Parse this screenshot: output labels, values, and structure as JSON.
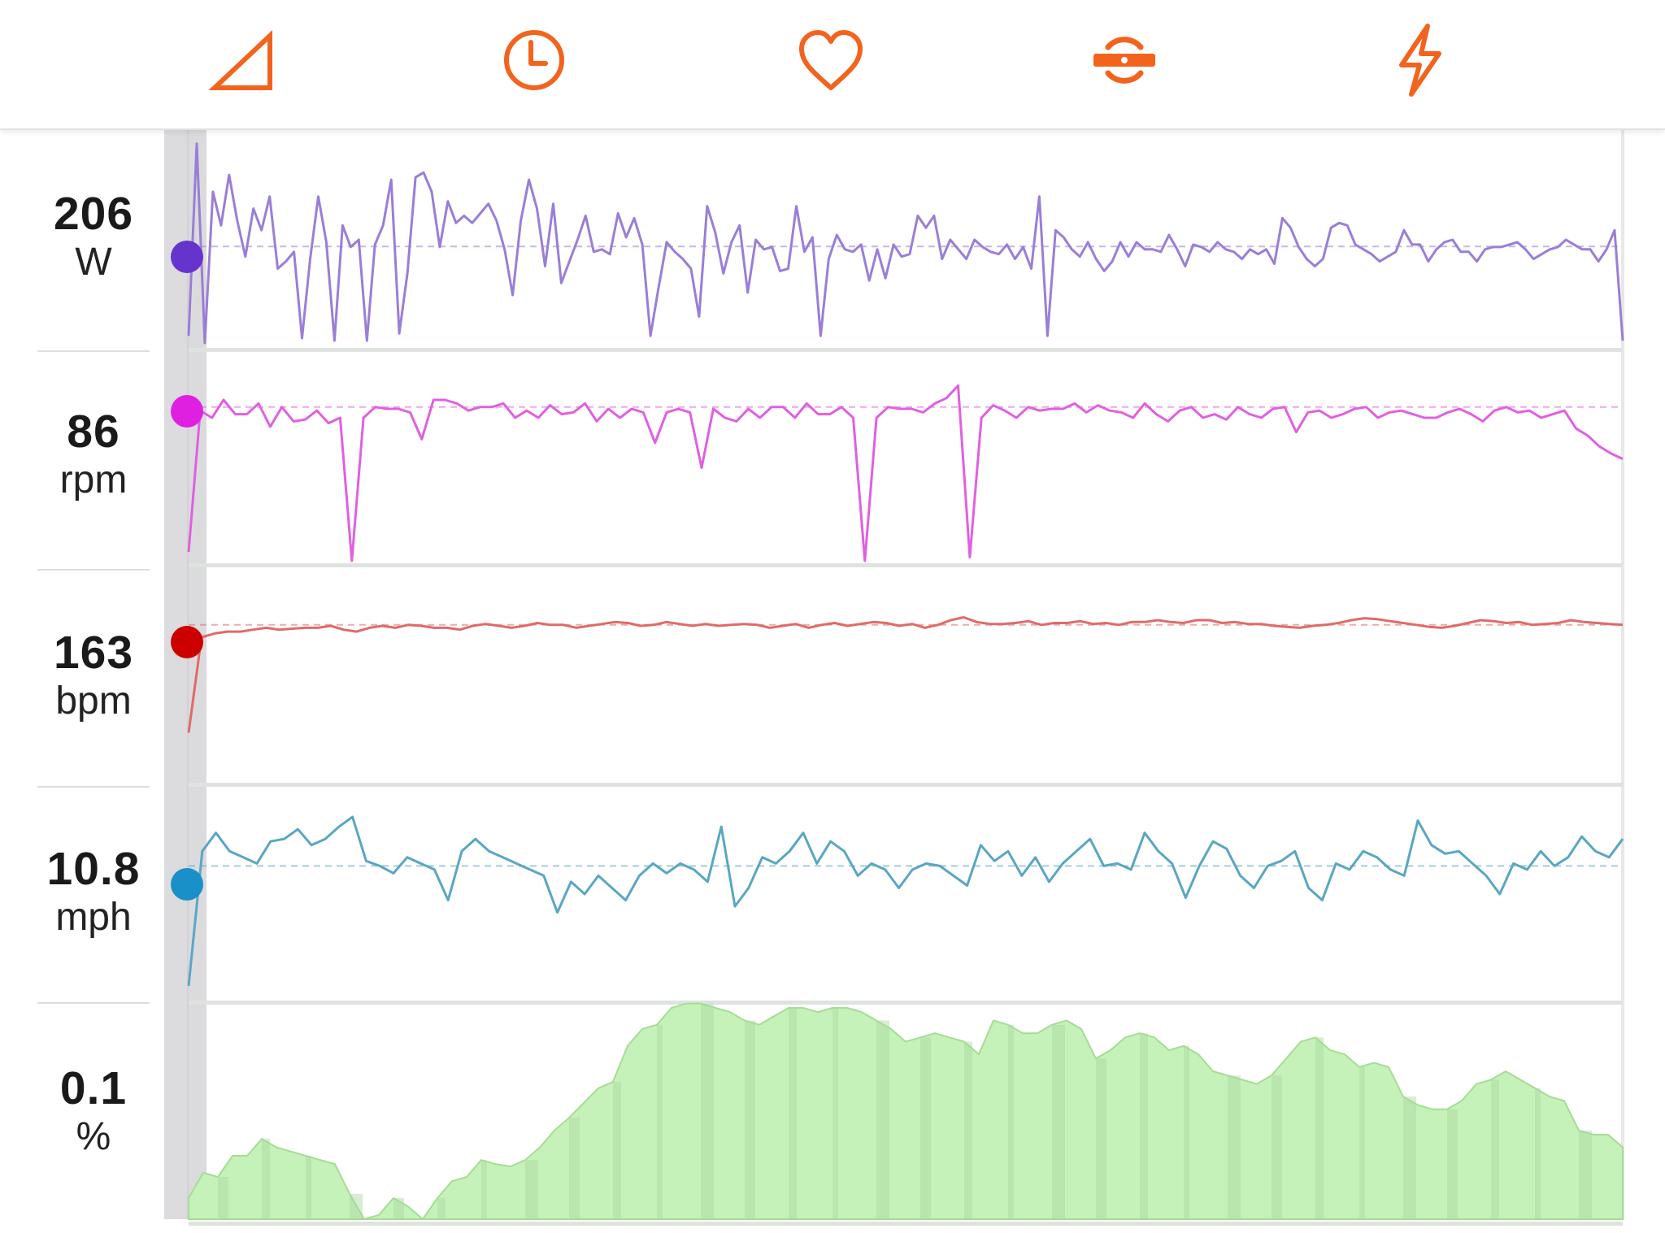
{
  "toolbar": {
    "icons": [
      "elevation-icon",
      "clock-icon",
      "heart-icon",
      "cadence-icon",
      "power-icon"
    ],
    "accent": "#f2641e"
  },
  "metrics": [
    {
      "value": "206",
      "unit": "W",
      "color": "#6633cc"
    },
    {
      "value": "86",
      "unit": "rpm",
      "color": "#e020e0"
    },
    {
      "value": "163",
      "unit": "bpm",
      "color": "#cc0000"
    },
    {
      "value": "10.8",
      "unit": "mph",
      "color": "#1a90c8"
    },
    {
      "value": "0.1",
      "unit": "%",
      "color": "#8bd67a"
    }
  ],
  "chart_data": [
    {
      "type": "line",
      "name": "power",
      "unit": "W",
      "line_color": "#9a7ed6",
      "ylim": [
        0,
        440
      ],
      "reference": 206,
      "values": [
        20,
        420,
        5,
        320,
        250,
        355,
        260,
        185,
        285,
        240,
        310,
        160,
        175,
        195,
        15,
        180,
        310,
        215,
        10,
        250,
        205,
        220,
        10,
        210,
        250,
        345,
        25,
        150,
        350,
        360,
        320,
        205,
        300,
        255,
        270,
        255,
        275,
        295,
        260,
        200,
        105,
        260,
        345,
        285,
        165,
        295,
        130,
        175,
        220,
        270,
        195,
        200,
        190,
        275,
        225,
        265,
        210,
        20,
        120,
        215,
        195,
        180,
        160,
        60,
        290,
        235,
        150,
        215,
        250,
        110,
        220,
        200,
        205,
        155,
        160,
        290,
        195,
        225,
        20,
        180,
        230,
        200,
        195,
        210,
        135,
        200,
        140,
        210,
        185,
        190,
        270,
        245,
        270,
        180,
        220,
        200,
        180,
        220,
        205,
        195,
        190,
        210,
        180,
        205,
        160,
        310,
        20,
        240,
        225,
        200,
        185,
        215,
        180,
        155,
        175,
        215,
        185,
        215,
        200,
        200,
        195,
        230,
        200,
        165,
        210,
        205,
        195,
        215,
        200,
        195,
        180,
        200,
        190,
        200,
        170,
        265,
        245,
        205,
        180,
        165,
        180,
        245,
        255,
        250,
        210,
        200,
        190,
        175,
        185,
        195,
        240,
        210,
        210,
        175,
        200,
        215,
        220,
        195,
        195,
        175,
        200,
        205,
        205,
        210,
        215,
        200,
        180,
        190,
        200,
        205,
        220,
        210,
        200,
        200,
        175,
        200,
        240,
        10
      ]
    },
    {
      "type": "line",
      "name": "cadence",
      "unit": "rpm",
      "line_color": "#e060e0",
      "ylim": [
        0,
        115
      ],
      "reference": 86,
      "values": [
        5,
        84,
        80,
        90,
        82,
        82,
        88,
        75,
        86,
        78,
        79,
        84,
        77,
        80,
        0,
        80,
        86,
        85,
        85,
        83,
        68,
        90,
        90,
        88,
        84,
        86,
        86,
        88,
        80,
        84,
        80,
        87,
        82,
        83,
        88,
        78,
        85,
        80,
        85,
        83,
        66,
        83,
        85,
        83,
        52,
        85,
        80,
        78,
        85,
        80,
        86,
        86,
        80,
        88,
        82,
        82,
        86,
        80,
        0,
        80,
        86,
        85,
        85,
        83,
        88,
        91,
        98,
        2,
        80,
        87,
        84,
        80,
        86,
        84,
        85,
        85,
        88,
        83,
        87,
        84,
        83,
        80,
        88,
        82,
        78,
        84,
        86,
        80,
        82,
        79,
        86,
        82,
        80,
        85,
        86,
        72,
        83,
        84,
        80,
        82,
        85,
        86,
        80,
        83,
        84,
        82,
        80,
        80,
        83,
        85,
        82,
        78,
        84,
        86,
        83,
        84,
        80,
        82,
        84,
        74,
        70,
        64,
        60,
        57
      ]
    },
    {
      "type": "line",
      "name": "heart_rate",
      "unit": "bpm",
      "line_color": "#e06a6a",
      "ylim": [
        0,
        220
      ],
      "reference": 163,
      "values": [
        50,
        150,
        154,
        156,
        156,
        158,
        160,
        158,
        159,
        160,
        160,
        162,
        158,
        156,
        160,
        162,
        160,
        163,
        162,
        160,
        160,
        158,
        162,
        164,
        162,
        160,
        162,
        165,
        163,
        163,
        160,
        162,
        164,
        166,
        165,
        162,
        163,
        166,
        164,
        162,
        164,
        162,
        163,
        164,
        163,
        160,
        162,
        164,
        160,
        163,
        165,
        162,
        164,
        166,
        165,
        162,
        164,
        160,
        163,
        168,
        171,
        166,
        164,
        164,
        165,
        167,
        163,
        165,
        165,
        167,
        164,
        165,
        163,
        166,
        166,
        168,
        166,
        165,
        168,
        168,
        165,
        166,
        164,
        164,
        162,
        161,
        160,
        162,
        163,
        165,
        168,
        170,
        169,
        167,
        165,
        163,
        161,
        160,
        162,
        165,
        168,
        167,
        165,
        166,
        163,
        164,
        165,
        168,
        166,
        165,
        164,
        163
      ]
    },
    {
      "type": "line",
      "name": "speed",
      "unit": "mph",
      "line_color": "#5aa6c2",
      "ylim": [
        0,
        17
      ],
      "reference": 10.8,
      "values": [
        1,
        12,
        13.5,
        12,
        11.5,
        11,
        12.8,
        13,
        13.8,
        12.5,
        13,
        14,
        14.8,
        11.2,
        10.8,
        10.2,
        11.5,
        11,
        10.5,
        8,
        12,
        13,
        12,
        11.5,
        11,
        10.5,
        10,
        7,
        9.5,
        8.5,
        10,
        9,
        8,
        10,
        11,
        10.2,
        11,
        10.5,
        9.5,
        14,
        7.5,
        9,
        11.5,
        11,
        12,
        13.5,
        11,
        12.8,
        12,
        10,
        11,
        10.5,
        9,
        10.5,
        11,
        10.8,
        10,
        9.2,
        12.5,
        11.2,
        12,
        10,
        11.5,
        9.5,
        11,
        12,
        13,
        10.8,
        11,
        10.5,
        13.5,
        12,
        11,
        8.2,
        10.8,
        12.8,
        12.2,
        10,
        9,
        10.8,
        11.2,
        12,
        9,
        8,
        11,
        10.5,
        12,
        11.5,
        10.5,
        10,
        14.5,
        12.5,
        11.8,
        12,
        11,
        10,
        8.5,
        11,
        10.5,
        12,
        10.8,
        11.5,
        13.2,
        12,
        11.5,
        13
      ]
    },
    {
      "type": "area",
      "name": "grade",
      "unit": "%",
      "fill_color": "#c5f2b8",
      "ylim": [
        0,
        100
      ],
      "reference": 0.1,
      "values": [
        10,
        22,
        20,
        30,
        30,
        38,
        34,
        32,
        30,
        28,
        26,
        12,
        0,
        2,
        10,
        6,
        0,
        10,
        18,
        20,
        28,
        26,
        25,
        28,
        34,
        42,
        48,
        55,
        62,
        65,
        82,
        90,
        92,
        100,
        102,
        102,
        100,
        98,
        94,
        92,
        96,
        100,
        100,
        98,
        100,
        100,
        98,
        94,
        90,
        84,
        86,
        88,
        86,
        84,
        78,
        94,
        92,
        88,
        88,
        92,
        94,
        90,
        76,
        80,
        86,
        88,
        86,
        80,
        82,
        78,
        70,
        68,
        66,
        64,
        68,
        76,
        84,
        86,
        80,
        78,
        72,
        74,
        72,
        58,
        54,
        52,
        52,
        56,
        64,
        66,
        70,
        66,
        62,
        58,
        56,
        42,
        40,
        40,
        34
      ]
    }
  ]
}
